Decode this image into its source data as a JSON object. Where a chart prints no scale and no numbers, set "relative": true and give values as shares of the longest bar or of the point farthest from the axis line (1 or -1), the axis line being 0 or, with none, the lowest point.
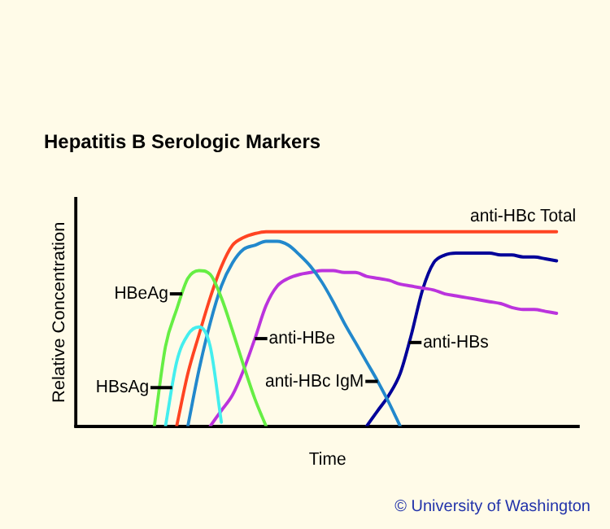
{
  "chart_data": {
    "type": "line",
    "title": "Hepatitis B Serologic Markers",
    "xlabel": "Time",
    "ylabel": "Relative Concentration",
    "relative": true,
    "legend": false,
    "grid": false,
    "marker": "none",
    "line_style": "solid",
    "annotations": [
      "© University of Washington"
    ],
    "categories": [
      null,
      null,
      null,
      null,
      null,
      null,
      null,
      null,
      null,
      null,
      null,
      null,
      null,
      null,
      null,
      null,
      null,
      null,
      null,
      null,
      null,
      null,
      null,
      null,
      null,
      null,
      null,
      null,
      null,
      null,
      null,
      null,
      null,
      null,
      null,
      null,
      null,
      null,
      null,
      null,
      null,
      null,
      null,
      null,
      null,
      null
    ],
    "series": [
      {
        "name": "HBeAg",
        "color": "#66ee44",
        "values": [
          null,
          null,
          null,
          null,
          null,
          null,
          null,
          0,
          0.41,
          0.6,
          0.76,
          0.8,
          0.78,
          0.66,
          0.49,
          0.31,
          0.14,
          0,
          null,
          null,
          null,
          null,
          null,
          null,
          null,
          null,
          null,
          null,
          null,
          null,
          null,
          null,
          null,
          null,
          null,
          null,
          null,
          null,
          null,
          null,
          null,
          null,
          null,
          null,
          null,
          null
        ]
      },
      {
        "name": "HBsAg",
        "color": "#44eeee",
        "values": [
          null,
          null,
          null,
          null,
          null,
          null,
          null,
          null,
          0,
          0.33,
          0.47,
          0.51,
          0.41,
          0.02,
          null,
          null,
          null,
          null,
          null,
          null,
          null,
          null,
          null,
          null,
          null,
          null,
          null,
          null,
          null,
          null,
          null,
          null,
          null,
          null,
          null,
          null,
          null,
          null,
          null,
          null,
          null,
          null,
          null,
          null,
          null,
          null
        ]
      },
      {
        "name": "anti-HBc Total",
        "color": "#ff4422",
        "values": [
          null,
          null,
          null,
          null,
          null,
          null,
          null,
          null,
          null,
          0,
          0.27,
          0.47,
          0.66,
          0.82,
          0.93,
          0.97,
          0.99,
          1,
          1,
          1,
          1,
          1,
          1,
          1,
          1,
          1,
          1,
          1,
          1,
          1,
          1,
          1,
          1,
          1,
          1,
          1,
          1,
          1,
          1,
          1,
          1,
          1,
          1,
          1,
          null,
          null
        ]
      },
      {
        "name": "anti-HBc IgM",
        "color": "#2288cc",
        "values": [
          null,
          null,
          null,
          null,
          null,
          null,
          null,
          null,
          null,
          null,
          0,
          0.29,
          0.53,
          0.72,
          0.84,
          0.91,
          0.93,
          0.95,
          0.95,
          0.93,
          0.88,
          0.82,
          0.74,
          0.64,
          0.53,
          0.43,
          0.33,
          0.23,
          0.12,
          0,
          null,
          null,
          null,
          null,
          null,
          null,
          null,
          null,
          null,
          null,
          null,
          null,
          null,
          null,
          null,
          null
        ]
      },
      {
        "name": "anti-HBe",
        "color": "#bb33dd",
        "values": [
          null,
          null,
          null,
          null,
          null,
          null,
          null,
          null,
          null,
          null,
          null,
          null,
          0,
          0.08,
          0.16,
          0.29,
          0.45,
          0.62,
          0.72,
          0.76,
          0.78,
          0.79,
          0.8,
          0.8,
          0.79,
          0.79,
          0.77,
          0.76,
          0.75,
          0.73,
          0.72,
          0.71,
          0.7,
          0.68,
          0.67,
          0.66,
          0.65,
          0.64,
          0.63,
          0.61,
          0.6,
          0.6,
          0.59,
          0.58,
          null,
          null
        ]
      },
      {
        "name": "anti-HBs",
        "color": "#000099",
        "values": [
          null,
          null,
          null,
          null,
          null,
          null,
          null,
          null,
          null,
          null,
          null,
          null,
          null,
          null,
          null,
          null,
          null,
          null,
          null,
          null,
          null,
          null,
          null,
          null,
          null,
          null,
          0,
          0.08,
          0.16,
          0.27,
          0.47,
          0.7,
          0.84,
          0.88,
          0.89,
          0.89,
          0.89,
          0.89,
          0.88,
          0.88,
          0.87,
          0.87,
          0.86,
          0.85,
          null,
          null
        ]
      }
    ]
  }
}
